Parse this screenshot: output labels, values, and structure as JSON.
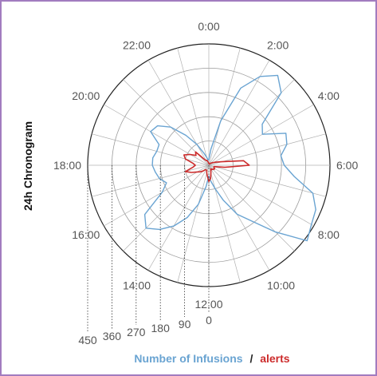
{
  "chart_data": {
    "type": "polar-line",
    "ylabel": "24h Chronogram",
    "hour_labels": [
      "0:00",
      "2:00",
      "4:00",
      "6:00",
      "8:00",
      "10:00",
      "12:00",
      "14:00",
      "16:00",
      "18:00",
      "20:00",
      "22:00"
    ],
    "radial_ticks": [
      0,
      90,
      180,
      270,
      360,
      450
    ],
    "radial_tick_labels": [
      "0",
      "90",
      "180",
      "270",
      "360",
      "450"
    ],
    "rmax": 450,
    "legend": {
      "infusions_label": "Number of Infusions",
      "separator": "/",
      "alerts_label": "alerts"
    },
    "colors": {
      "infusions": "#6aa4d2",
      "alerts": "#cc2b2b",
      "border": "#a27cbf"
    },
    "series": [
      {
        "name": "Number of Infusions",
        "x": [
          0,
          0.5,
          1,
          1.5,
          2,
          2.5,
          3,
          3.5,
          4,
          4.5,
          5,
          5.5,
          6,
          6.5,
          7,
          7.5,
          8,
          8.5,
          9,
          9.5,
          10,
          10.5,
          11,
          11.5,
          12,
          12.5,
          13,
          13.5,
          14,
          14.5,
          15,
          15.5,
          16,
          16.5,
          17,
          17.5,
          18,
          18.5,
          19,
          19.5,
          20,
          20.5,
          21,
          21.5,
          22,
          22.5,
          23,
          23.5
        ],
        "values": [
          20,
          60,
          170,
          310,
          380,
          420,
          380,
          250,
          230,
          310,
          300,
          270,
          280,
          320,
          400,
          430,
          440,
          460,
          350,
          260,
          210,
          140,
          90,
          60,
          40,
          80,
          150,
          210,
          260,
          300,
          330,
          300,
          200,
          170,
          190,
          200,
          210,
          210,
          200,
          200,
          250,
          240,
          200,
          140,
          90,
          50,
          30,
          20
        ]
      },
      {
        "name": "alerts",
        "x": [
          0,
          0.5,
          1,
          1.5,
          2,
          2.5,
          3,
          3.5,
          4,
          4.5,
          5,
          5.5,
          6,
          6.5,
          7,
          7.5,
          8,
          8.5,
          9,
          9.5,
          10,
          10.5,
          11,
          11.5,
          12,
          12.5,
          13,
          13.5,
          14,
          14.5,
          15,
          15.5,
          16,
          16.5,
          17,
          17.5,
          18,
          18.5,
          19,
          19.5,
          20,
          20.5,
          21,
          21.5,
          22,
          22.5,
          23,
          23.5
        ],
        "values": [
          5,
          5,
          5,
          5,
          5,
          10,
          10,
          15,
          20,
          30,
          50,
          130,
          150,
          60,
          20,
          20,
          25,
          25,
          20,
          20,
          15,
          20,
          30,
          50,
          60,
          40,
          30,
          20,
          20,
          20,
          30,
          40,
          50,
          70,
          90,
          60,
          50,
          60,
          90,
          100,
          80,
          60,
          70,
          30,
          20,
          20,
          15,
          10
        ]
      }
    ]
  }
}
